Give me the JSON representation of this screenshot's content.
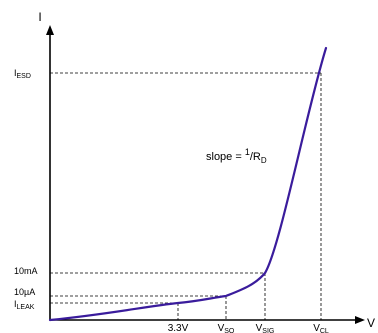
{
  "chart_data": {
    "type": "line",
    "title": "",
    "xlabel": "V",
    "ylabel": "I",
    "x_ticks": [
      {
        "id": "v33",
        "main": "3.3V",
        "sub": ""
      },
      {
        "id": "vso",
        "main": "V",
        "sub": "SO"
      },
      {
        "id": "vsig",
        "main": "V",
        "sub": "SIG"
      },
      {
        "id": "vcl",
        "main": "V",
        "sub": "CL"
      }
    ],
    "y_ticks": [
      {
        "id": "iesd",
        "main": "I",
        "sub": "ESD"
      },
      {
        "id": "i10ma",
        "main": "10mA",
        "sub": ""
      },
      {
        "id": "i10ua",
        "main": "10µA",
        "sub": ""
      },
      {
        "id": "ileak",
        "main": "I",
        "sub": "LEAK"
      }
    ],
    "annotation": {
      "prefix": "slope = ",
      "numerator": "1",
      "slash": "/",
      "denom_main": "R",
      "denom_sub": "D"
    },
    "line_color": "#3a1c9c",
    "curve_points": [
      [
        "origin",
        "origin"
      ],
      [
        "v33",
        "ileak"
      ],
      [
        "vso",
        "i10ua"
      ],
      [
        "vsig",
        "i10ma"
      ],
      [
        "vcl",
        "iesd"
      ]
    ]
  }
}
